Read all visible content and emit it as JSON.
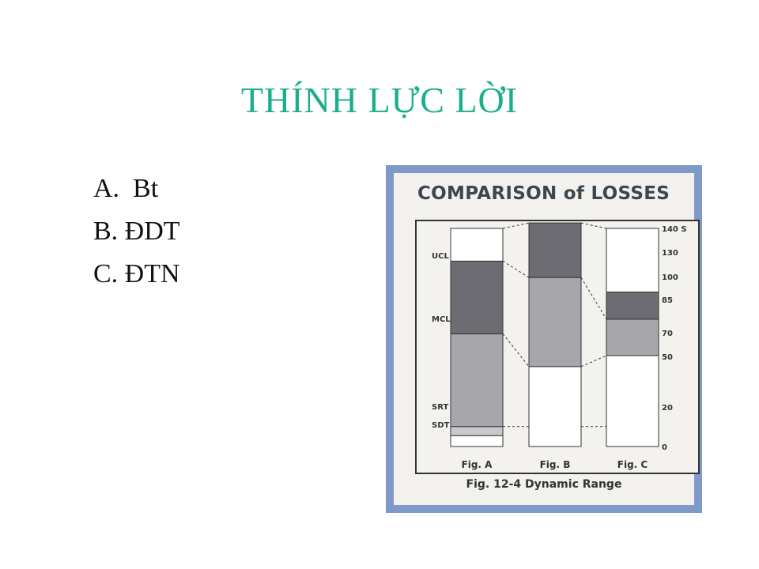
{
  "slide": {
    "title": "THÍNH LỰC LỜI",
    "options": [
      "A.  Bt",
      "B. ĐDT",
      "C. ĐTN"
    ]
  },
  "figure": {
    "heading": "COMPARISON of LOSSES",
    "caption": "Fig. 12-4 Dynamic Range"
  },
  "chart_data": {
    "type": "bar",
    "title": "COMPARISON of LOSSES",
    "categories": [
      "Fig. A",
      "Fig. B",
      "Fig. C"
    ],
    "left_labels": [
      "UCL",
      "MCL",
      "SRT",
      "SDT"
    ],
    "axis_ticks": [
      "140 S",
      "130",
      "100",
      "85",
      "70",
      "50",
      "20",
      "0"
    ],
    "ylim": [
      0,
      140
    ],
    "columns": [
      {
        "name": "Fig. A",
        "segments": [
          [
            0,
            6
          ],
          [
            6,
            11
          ],
          [
            11,
            62
          ],
          [
            62,
            102
          ],
          [
            102,
            120
          ]
        ]
      },
      {
        "name": "Fig. B",
        "segments": [
          [
            0,
            44
          ],
          [
            44,
            93
          ],
          [
            93,
            123
          ]
        ]
      },
      {
        "name": "Fig. C",
        "segments": [
          [
            0,
            50
          ],
          [
            50,
            70
          ],
          [
            70,
            85
          ],
          [
            85,
            120
          ]
        ]
      }
    ],
    "colors": {
      "dark": "#6c6c72",
      "mid": "#a6a6ab",
      "light": "#c9c9cc",
      "white": "#ffffff"
    }
  }
}
